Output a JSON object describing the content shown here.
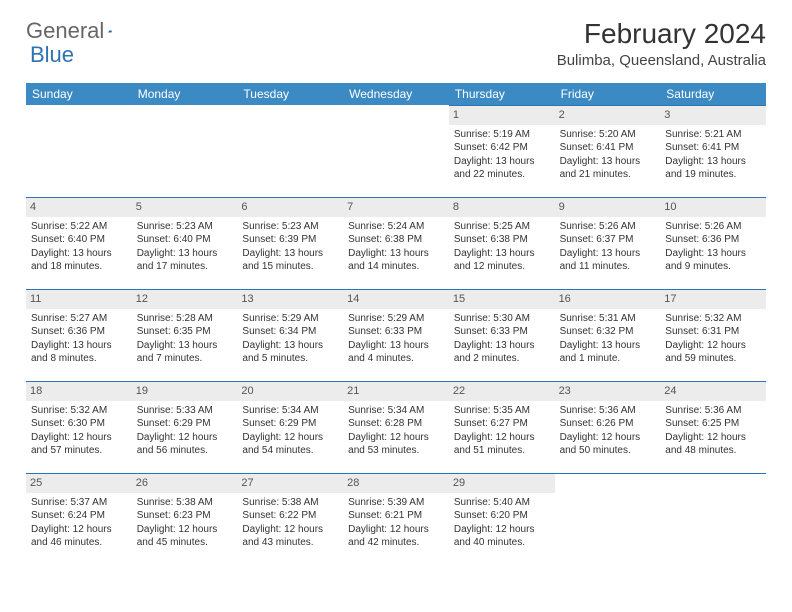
{
  "logo": {
    "text1": "General",
    "text2": "Blue"
  },
  "title": "February 2024",
  "location": "Bulimba, Queensland, Australia",
  "colors": {
    "header_bg": "#3b8ac4",
    "header_text": "#ffffff",
    "border": "#2e74b5",
    "daynum_bg": "#ececec",
    "page_bg": "#ffffff"
  },
  "weekdays": [
    "Sunday",
    "Monday",
    "Tuesday",
    "Wednesday",
    "Thursday",
    "Friday",
    "Saturday"
  ],
  "grid": [
    [
      {
        "blank": true
      },
      {
        "blank": true
      },
      {
        "blank": true
      },
      {
        "blank": true
      },
      {
        "day": "1",
        "sunrise": "Sunrise: 5:19 AM",
        "sunset": "Sunset: 6:42 PM",
        "daylight": "Daylight: 13 hours and 22 minutes."
      },
      {
        "day": "2",
        "sunrise": "Sunrise: 5:20 AM",
        "sunset": "Sunset: 6:41 PM",
        "daylight": "Daylight: 13 hours and 21 minutes."
      },
      {
        "day": "3",
        "sunrise": "Sunrise: 5:21 AM",
        "sunset": "Sunset: 6:41 PM",
        "daylight": "Daylight: 13 hours and 19 minutes."
      }
    ],
    [
      {
        "day": "4",
        "sunrise": "Sunrise: 5:22 AM",
        "sunset": "Sunset: 6:40 PM",
        "daylight": "Daylight: 13 hours and 18 minutes."
      },
      {
        "day": "5",
        "sunrise": "Sunrise: 5:23 AM",
        "sunset": "Sunset: 6:40 PM",
        "daylight": "Daylight: 13 hours and 17 minutes."
      },
      {
        "day": "6",
        "sunrise": "Sunrise: 5:23 AM",
        "sunset": "Sunset: 6:39 PM",
        "daylight": "Daylight: 13 hours and 15 minutes."
      },
      {
        "day": "7",
        "sunrise": "Sunrise: 5:24 AM",
        "sunset": "Sunset: 6:38 PM",
        "daylight": "Daylight: 13 hours and 14 minutes."
      },
      {
        "day": "8",
        "sunrise": "Sunrise: 5:25 AM",
        "sunset": "Sunset: 6:38 PM",
        "daylight": "Daylight: 13 hours and 12 minutes."
      },
      {
        "day": "9",
        "sunrise": "Sunrise: 5:26 AM",
        "sunset": "Sunset: 6:37 PM",
        "daylight": "Daylight: 13 hours and 11 minutes."
      },
      {
        "day": "10",
        "sunrise": "Sunrise: 5:26 AM",
        "sunset": "Sunset: 6:36 PM",
        "daylight": "Daylight: 13 hours and 9 minutes."
      }
    ],
    [
      {
        "day": "11",
        "sunrise": "Sunrise: 5:27 AM",
        "sunset": "Sunset: 6:36 PM",
        "daylight": "Daylight: 13 hours and 8 minutes."
      },
      {
        "day": "12",
        "sunrise": "Sunrise: 5:28 AM",
        "sunset": "Sunset: 6:35 PM",
        "daylight": "Daylight: 13 hours and 7 minutes."
      },
      {
        "day": "13",
        "sunrise": "Sunrise: 5:29 AM",
        "sunset": "Sunset: 6:34 PM",
        "daylight": "Daylight: 13 hours and 5 minutes."
      },
      {
        "day": "14",
        "sunrise": "Sunrise: 5:29 AM",
        "sunset": "Sunset: 6:33 PM",
        "daylight": "Daylight: 13 hours and 4 minutes."
      },
      {
        "day": "15",
        "sunrise": "Sunrise: 5:30 AM",
        "sunset": "Sunset: 6:33 PM",
        "daylight": "Daylight: 13 hours and 2 minutes."
      },
      {
        "day": "16",
        "sunrise": "Sunrise: 5:31 AM",
        "sunset": "Sunset: 6:32 PM",
        "daylight": "Daylight: 13 hours and 1 minute."
      },
      {
        "day": "17",
        "sunrise": "Sunrise: 5:32 AM",
        "sunset": "Sunset: 6:31 PM",
        "daylight": "Daylight: 12 hours and 59 minutes."
      }
    ],
    [
      {
        "day": "18",
        "sunrise": "Sunrise: 5:32 AM",
        "sunset": "Sunset: 6:30 PM",
        "daylight": "Daylight: 12 hours and 57 minutes."
      },
      {
        "day": "19",
        "sunrise": "Sunrise: 5:33 AM",
        "sunset": "Sunset: 6:29 PM",
        "daylight": "Daylight: 12 hours and 56 minutes."
      },
      {
        "day": "20",
        "sunrise": "Sunrise: 5:34 AM",
        "sunset": "Sunset: 6:29 PM",
        "daylight": "Daylight: 12 hours and 54 minutes."
      },
      {
        "day": "21",
        "sunrise": "Sunrise: 5:34 AM",
        "sunset": "Sunset: 6:28 PM",
        "daylight": "Daylight: 12 hours and 53 minutes."
      },
      {
        "day": "22",
        "sunrise": "Sunrise: 5:35 AM",
        "sunset": "Sunset: 6:27 PM",
        "daylight": "Daylight: 12 hours and 51 minutes."
      },
      {
        "day": "23",
        "sunrise": "Sunrise: 5:36 AM",
        "sunset": "Sunset: 6:26 PM",
        "daylight": "Daylight: 12 hours and 50 minutes."
      },
      {
        "day": "24",
        "sunrise": "Sunrise: 5:36 AM",
        "sunset": "Sunset: 6:25 PM",
        "daylight": "Daylight: 12 hours and 48 minutes."
      }
    ],
    [
      {
        "day": "25",
        "sunrise": "Sunrise: 5:37 AM",
        "sunset": "Sunset: 6:24 PM",
        "daylight": "Daylight: 12 hours and 46 minutes."
      },
      {
        "day": "26",
        "sunrise": "Sunrise: 5:38 AM",
        "sunset": "Sunset: 6:23 PM",
        "daylight": "Daylight: 12 hours and 45 minutes."
      },
      {
        "day": "27",
        "sunrise": "Sunrise: 5:38 AM",
        "sunset": "Sunset: 6:22 PM",
        "daylight": "Daylight: 12 hours and 43 minutes."
      },
      {
        "day": "28",
        "sunrise": "Sunrise: 5:39 AM",
        "sunset": "Sunset: 6:21 PM",
        "daylight": "Daylight: 12 hours and 42 minutes."
      },
      {
        "day": "29",
        "sunrise": "Sunrise: 5:40 AM",
        "sunset": "Sunset: 6:20 PM",
        "daylight": "Daylight: 12 hours and 40 minutes."
      },
      {
        "blank": true
      },
      {
        "blank": true
      }
    ]
  ]
}
